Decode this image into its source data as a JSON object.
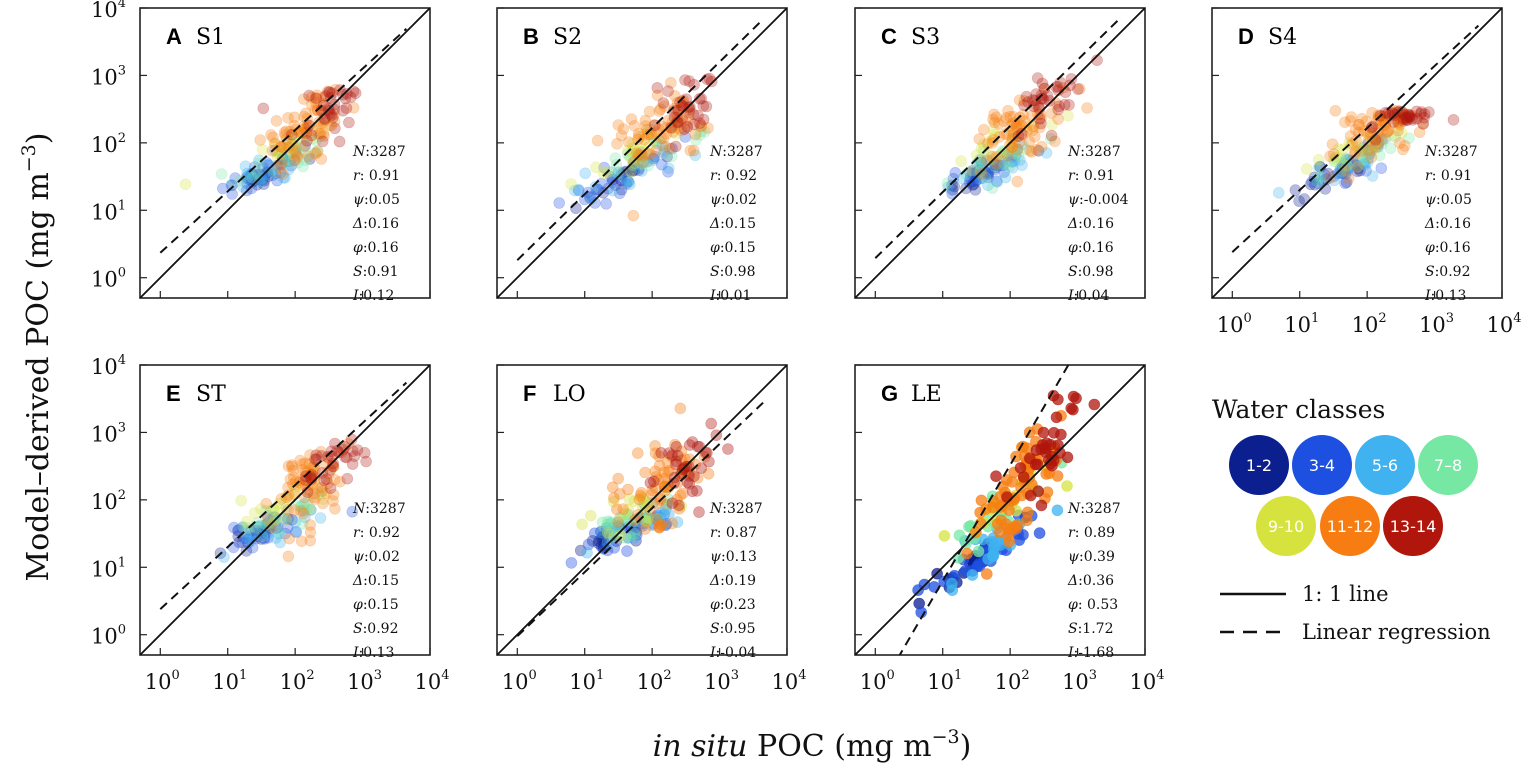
{
  "chart_data": {
    "type": "scatter",
    "scale": "log10",
    "axis_range": [
      0.5,
      10000
    ],
    "tick_labels": [
      {
        "base": "10",
        "exp": "0",
        "value": 1
      },
      {
        "base": "10",
        "exp": "1",
        "value": 10
      },
      {
        "base": "10",
        "exp": "2",
        "value": 100
      },
      {
        "base": "10",
        "exp": "3",
        "value": 1000
      },
      {
        "base": "10",
        "exp": "4",
        "value": 10000
      }
    ],
    "xlabel": {
      "italic": "in situ",
      "rest": " POC (mg m",
      "exp": "−3",
      "close": ")"
    },
    "ylabel": {
      "text": "Model–derived POC (mg m",
      "exp": "−3",
      "close": ")"
    },
    "stat_labels": [
      "N",
      "r",
      "ψ",
      "Δ",
      "φ",
      "S",
      "I"
    ],
    "panels": [
      {
        "letter": "A",
        "name": "S1",
        "stats": [
          "3287",
          " 0.91",
          "0.05",
          "0.16",
          "0.16",
          "0.91",
          "0.12"
        ],
        "regression": {
          "slope": 0.91,
          "intercept": 0.12
        },
        "alpha": 0.3,
        "spread": 0.18,
        "high_ycap": 650
      },
      {
        "letter": "B",
        "name": "S2",
        "stats": [
          "3287",
          " 0.92",
          "0.02",
          "0.15",
          "0.15",
          "0.98",
          "0.01"
        ],
        "regression": {
          "slope": 0.98,
          "intercept": 0.01
        },
        "alpha": 0.3,
        "spread": 0.17,
        "high_ycap": 900
      },
      {
        "letter": "C",
        "name": "S3",
        "stats": [
          "3287",
          " 0.91",
          "-0.004",
          "0.16",
          "0.16",
          "0.98",
          "0.04"
        ],
        "regression": {
          "slope": 0.98,
          "intercept": 0.04
        },
        "alpha": 0.3,
        "spread": 0.19,
        "high_ycap": 2000
      },
      {
        "letter": "D",
        "name": "S4",
        "stats": [
          "3287",
          " 0.91",
          "0.05",
          "0.16",
          "0.16",
          "0.92",
          "0.13"
        ],
        "regression": {
          "slope": 0.92,
          "intercept": 0.13
        },
        "alpha": 0.3,
        "spread": 0.12,
        "high_ycap": 300
      },
      {
        "letter": "E",
        "name": "ST",
        "stats": [
          "3287",
          " 0.92",
          "0.02",
          "0.15",
          "0.15",
          "0.92",
          "0.13"
        ],
        "regression": {
          "slope": 0.92,
          "intercept": 0.13
        },
        "alpha": 0.3,
        "spread": 0.17,
        "high_ycap": 1000
      },
      {
        "letter": "F",
        "name": "LO",
        "stats": [
          "3287",
          " 0.87",
          "0.13",
          "0.19",
          "0.23",
          "0.95",
          "-0.04"
        ],
        "regression": {
          "slope": 0.95,
          "intercept": -0.04
        },
        "alpha": 0.38,
        "spread": 0.22,
        "high_ycap": 6000
      },
      {
        "letter": "G",
        "name": "LE",
        "stats": [
          "3287",
          " 0.89",
          "0.39",
          "0.36",
          " 0.53",
          "1.72",
          "-1.68"
        ],
        "regression": {
          "slope": 1.72,
          "intercept": -1.68
        },
        "alpha": 0.75,
        "spread": 0.33,
        "high_ycap": 6500
      }
    ],
    "legend": {
      "title": "Water classes",
      "classes": [
        {
          "label": "1-2",
          "color": "#0b1f8f"
        },
        {
          "label": "3-4",
          "color": "#1d4fe0"
        },
        {
          "label": "5-6",
          "color": "#3fb2ef"
        },
        {
          "label": "7–8",
          "color": "#77e8a4"
        },
        {
          "label": "9-10",
          "color": "#d6e33e"
        },
        {
          "label": "11-12",
          "color": "#f77d12"
        },
        {
          "label": "13-14",
          "color": "#b0160c"
        }
      ],
      "lines": [
        {
          "style": "solid",
          "label": "1: 1 line"
        },
        {
          "style": "dashed",
          "label": "Linear regression"
        }
      ]
    }
  }
}
